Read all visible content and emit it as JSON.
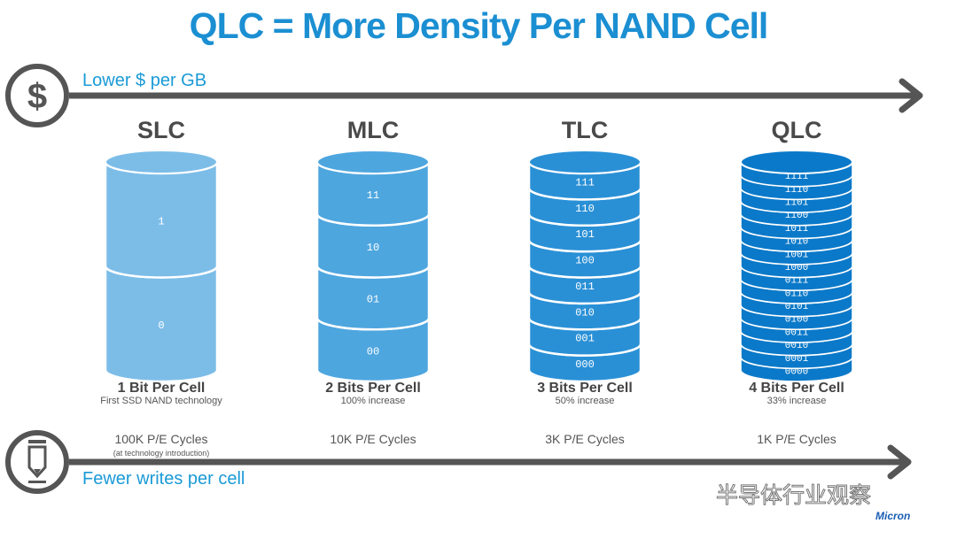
{
  "title": "QLC = More Density Per NAND Cell",
  "top_axis": {
    "label": "Lower $ per GB",
    "icon": "dollar-icon"
  },
  "bottom_axis": {
    "label": "Fewer writes per cell",
    "icon": "pencil-icon"
  },
  "columns": [
    {
      "name": "SLC",
      "bits": "1 Bit Per Cell",
      "sub": "First SSD NAND technology",
      "pe": "100K P/E Cycles",
      "pe_note": "(at technology introduction)",
      "color": "#7cbde8",
      "layers": [
        "1",
        "0"
      ]
    },
    {
      "name": "MLC",
      "bits": "2 Bits Per Cell",
      "sub": "100% increase",
      "pe": "10K P/E Cycles",
      "color": "#4ea6df",
      "layers": [
        "11",
        "10",
        "01",
        "00"
      ]
    },
    {
      "name": "TLC",
      "bits": "3 Bits Per Cell",
      "sub": "50% increase",
      "pe": "3K P/E Cycles",
      "color": "#2a90d6",
      "layers": [
        "111",
        "110",
        "101",
        "100",
        "011",
        "010",
        "001",
        "000"
      ]
    },
    {
      "name": "QLC",
      "bits": "4 Bits Per Cell",
      "sub": "33% increase",
      "pe": "1K P/E Cycles",
      "color": "#0b79c9",
      "layers": [
        "1111",
        "1110",
        "1101",
        "1100",
        "1011",
        "1010",
        "1001",
        "1000",
        "0111",
        "0110",
        "0101",
        "0100",
        "0011",
        "0010",
        "0001",
        "0000"
      ]
    }
  ],
  "watermark": "半导体行业观察",
  "logo": "Micron"
}
